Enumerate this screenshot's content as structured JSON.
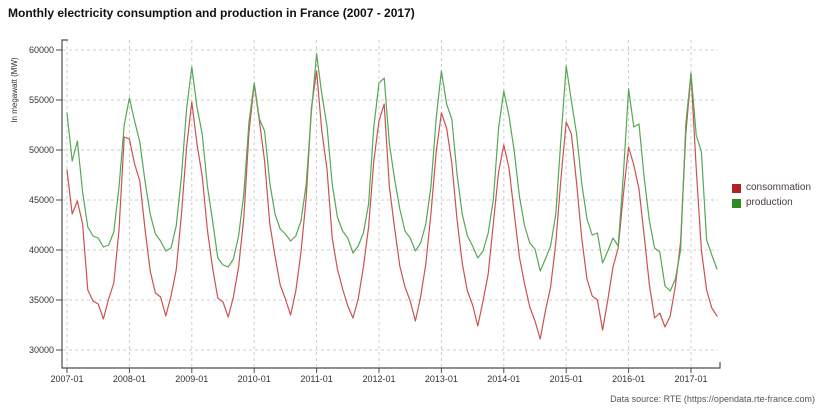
{
  "title": "Monthly electricity consumption and production in France (2007 - 2017)",
  "source_note": "Data source: RTE (https://opendata.rte-france.com)",
  "legend": {
    "items": [
      {
        "label": "consommation",
        "swatch_color": "#b22222"
      },
      {
        "label": "production",
        "swatch_color": "#2e8b22"
      }
    ]
  },
  "colors": {
    "consumption_line": "#cc5250",
    "production_line": "#55a855",
    "grid": "#cccccc",
    "axis": "#4d4d4d",
    "tick_label": "#333333"
  },
  "chart_data": {
    "type": "line",
    "title": "Monthly electricity consumption and production in France (2007 - 2017)",
    "ylabel": "In megawatt (MW)",
    "xlabel": "",
    "x_start": "2007-01",
    "x_end": "2017-06",
    "x_frequency": "monthly",
    "x_tick_labels": [
      "2007-01",
      "2008-01",
      "2009-01",
      "2010-01",
      "2011-01",
      "2012-01",
      "2013-01",
      "2014-01",
      "2015-01",
      "2016-01",
      "2017-01"
    ],
    "y_ticks": [
      30000,
      35000,
      40000,
      45000,
      50000,
      55000,
      60000
    ],
    "ylim": [
      28200,
      61000
    ],
    "grid": "dashed",
    "legend_position": "right",
    "series": [
      {
        "name": "consommation",
        "color": "#cc5250",
        "values": [
          48000,
          43600,
          44900,
          42600,
          36000,
          34900,
          34600,
          33100,
          35100,
          36700,
          42000,
          51300,
          51100,
          48600,
          46900,
          42100,
          37900,
          35700,
          35300,
          33400,
          35400,
          38000,
          43500,
          50300,
          54800,
          50600,
          47400,
          42000,
          38200,
          35200,
          34800,
          33300,
          35300,
          38300,
          43200,
          51800,
          56600,
          52900,
          48900,
          42600,
          39400,
          36500,
          35100,
          33500,
          35900,
          39800,
          45200,
          54200,
          57900,
          51900,
          48100,
          41200,
          38100,
          36100,
          34400,
          33200,
          35100,
          38300,
          42300,
          48900,
          52900,
          54600,
          46300,
          42200,
          38400,
          36300,
          34900,
          32900,
          35300,
          38600,
          43700,
          49800,
          53700,
          52200,
          48700,
          43100,
          38700,
          35900,
          34500,
          32400,
          34900,
          37600,
          42700,
          47800,
          50500,
          48200,
          43700,
          39300,
          36600,
          34300,
          32900,
          31100,
          33900,
          36300,
          40700,
          47200,
          52800,
          51600,
          46700,
          41100,
          37100,
          35400,
          35000,
          32000,
          35000,
          38300,
          40200,
          45600,
          50300,
          48500,
          46100,
          41400,
          36500,
          33200,
          33700,
          32300,
          33400,
          36400,
          40800,
          51600,
          57600,
          48200,
          40000,
          36000,
          34200,
          33400
        ]
      },
      {
        "name": "production",
        "color": "#55a855",
        "values": [
          53700,
          48900,
          50900,
          45800,
          42300,
          41400,
          41200,
          40300,
          40500,
          41800,
          46300,
          52500,
          55200,
          52900,
          50800,
          46900,
          43600,
          41600,
          40900,
          39900,
          40200,
          42400,
          47300,
          54100,
          58300,
          54300,
          51600,
          46400,
          42900,
          39200,
          38500,
          38300,
          39100,
          41400,
          45600,
          52800,
          56700,
          53100,
          51900,
          46700,
          43600,
          42100,
          41600,
          40900,
          41400,
          42900,
          46600,
          53800,
          59600,
          55600,
          52400,
          46600,
          43300,
          41900,
          41200,
          39700,
          40400,
          41700,
          44600,
          52300,
          56700,
          57200,
          50600,
          47100,
          44100,
          41900,
          41200,
          39900,
          40700,
          42600,
          46400,
          53200,
          57900,
          54600,
          53100,
          47600,
          43600,
          41400,
          40400,
          39200,
          39900,
          41700,
          45100,
          52200,
          55900,
          53400,
          49900,
          45400,
          42400,
          40700,
          40100,
          37900,
          39100,
          40400,
          43600,
          51200,
          58400,
          54900,
          51600,
          46600,
          43100,
          41500,
          41700,
          38700,
          39900,
          41200,
          40400,
          47600,
          56100,
          52300,
          52600,
          47200,
          42900,
          40200,
          39800,
          36400,
          35900,
          37100,
          40000,
          52600,
          57700,
          51500,
          49800,
          41000,
          39500,
          38100
        ]
      }
    ]
  }
}
